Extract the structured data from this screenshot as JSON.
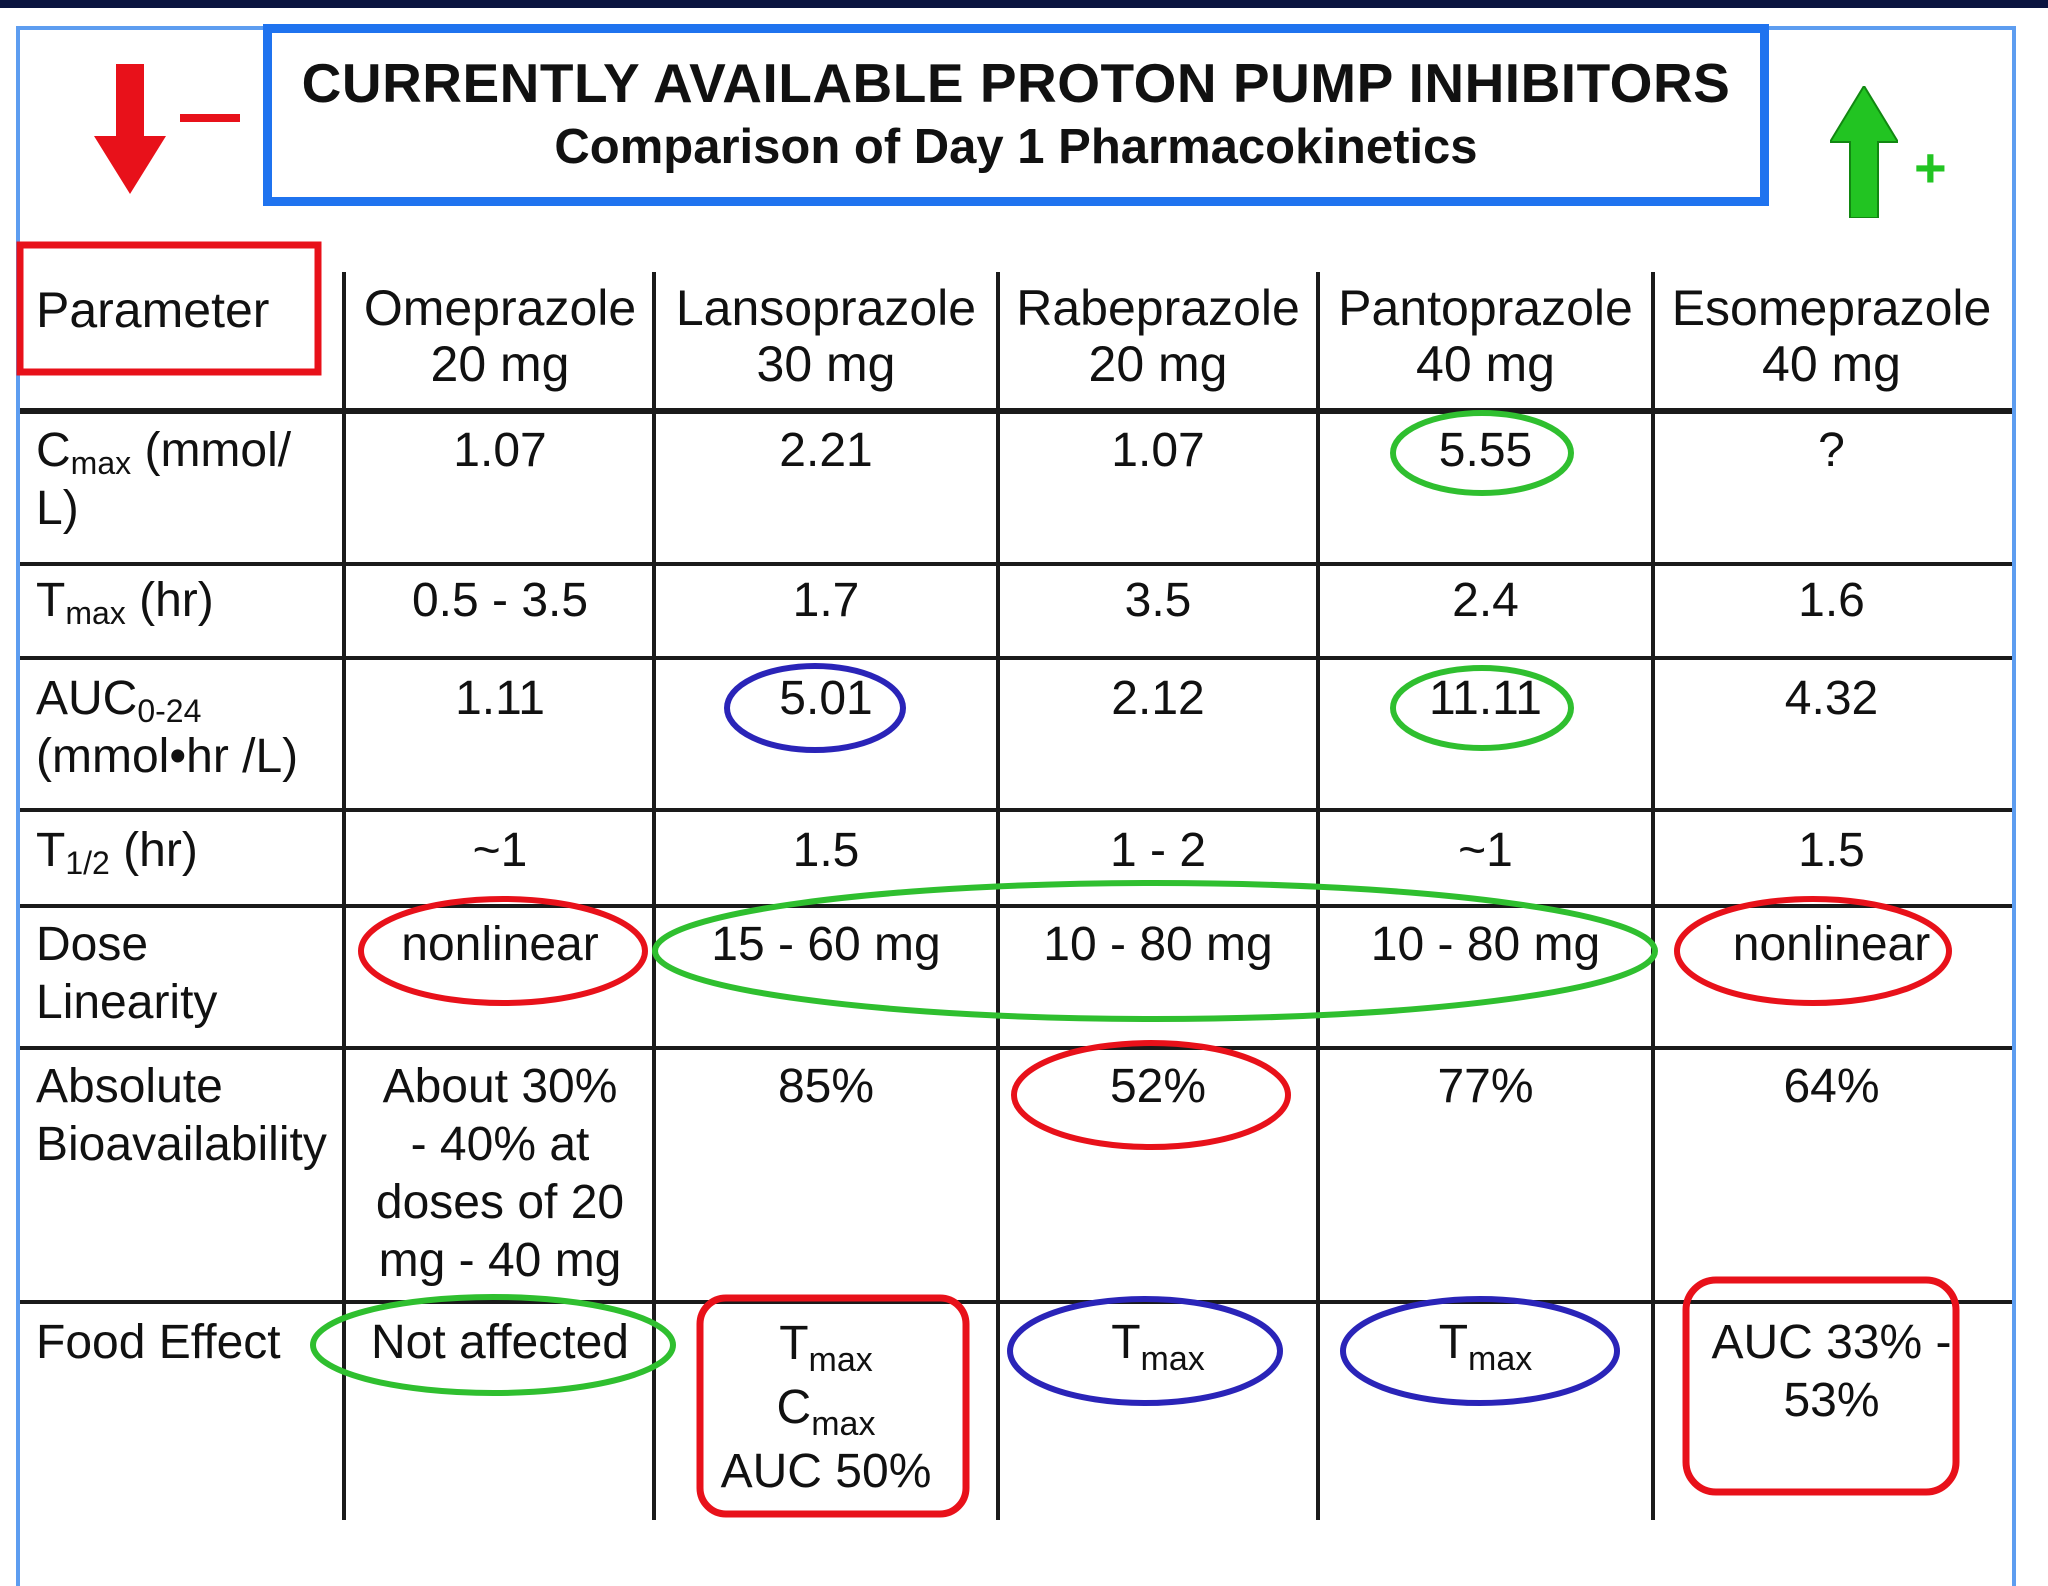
{
  "title": {
    "line1": "CURRENTLY AVAILABLE PROTON PUMP INHIBITORS",
    "line2": "Comparison of Day 1 Pharmacokinetics"
  },
  "legend": {
    "minus": "–",
    "plus": "+"
  },
  "table": {
    "header": {
      "parameter": "Parameter",
      "drugs": [
        {
          "name": "Omeprazole",
          "dose": "20 mg"
        },
        {
          "name": "Lansoprazole",
          "dose": "30 mg"
        },
        {
          "name": "Rabeprazole",
          "dose": "20 mg"
        },
        {
          "name": "Pantoprazole",
          "dose": "40 mg"
        },
        {
          "name": "Esomeprazole",
          "dose": "40 mg"
        }
      ]
    },
    "rows": {
      "cmax": {
        "label_main": "C",
        "label_sub": "max",
        "label_rest": " (mmol/",
        "label_line2": "L)",
        "values": [
          "1.07",
          "2.21",
          "1.07",
          "5.55",
          "?"
        ]
      },
      "tmax": {
        "label_main": "T",
        "label_sub": "max",
        "label_rest": " (hr)",
        "values": [
          "0.5 - 3.5",
          "1.7",
          "3.5",
          "2.4",
          "1.6"
        ]
      },
      "auc": {
        "label_main": "AUC",
        "label_sub": "0-24",
        "label_line2": "(mmol•hr /L)",
        "values": [
          "1.11",
          "5.01",
          "2.12",
          "11.11",
          "4.32"
        ]
      },
      "thalf": {
        "label_main": "T",
        "label_sub": "1/2",
        "label_rest": " (hr)",
        "values": [
          "~1",
          "1.5",
          "1 - 2",
          "~1",
          "1.5"
        ]
      },
      "dose": {
        "label_line1": "Dose",
        "label_line2": "Linearity",
        "values": [
          "nonlinear",
          "15 - 60 mg",
          "10 - 80 mg",
          "10 - 80 mg",
          "nonlinear"
        ]
      },
      "bio": {
        "label_line1": "Absolute",
        "label_line2": "Bioavailability",
        "omeprazole_lines": [
          "About 30%",
          "- 40% at",
          "doses of 20",
          "mg - 40 mg"
        ],
        "values": [
          "85%",
          "52%",
          "77%",
          "64%"
        ]
      },
      "food": {
        "label": "Food Effect",
        "omeprazole": "Not affected",
        "lansoprazole": {
          "t": "T",
          "t_sub": "max",
          "c": "C",
          "c_sub": "max",
          "auc": "AUC 50%"
        },
        "rabeprazole": {
          "t": "T",
          "t_sub": "max"
        },
        "pantoprazole": {
          "t": "T",
          "t_sub": "max"
        },
        "esomeprazole": [
          "AUC 33% -",
          "53%"
        ]
      }
    }
  },
  "colors": {
    "red": "#e8111a",
    "green": "#2fbf2f",
    "blue": "#2a24b8",
    "title_border": "#1f73ef"
  }
}
